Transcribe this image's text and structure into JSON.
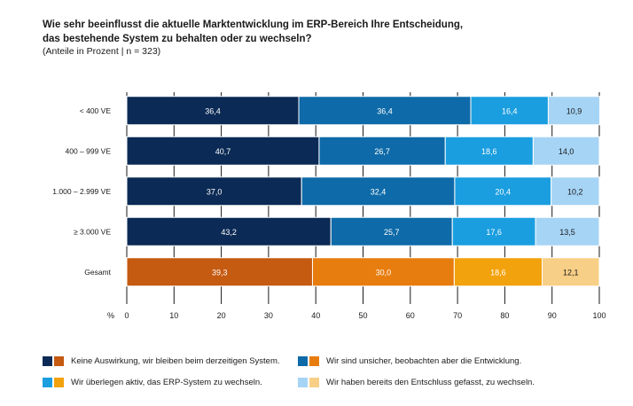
{
  "chart_data": {
    "type": "bar",
    "orientation": "horizontal",
    "stacked": true,
    "title_line1": "Wie sehr beeinflusst die aktuelle Marktentwicklung im ERP-Bereich Ihre Entscheidung,",
    "title_line2": "das bestehende System zu behalten oder zu wechseln?",
    "subtitle": "(Anteile in Prozent  | n = 323)",
    "xlabel": "%",
    "xlim": [
      0,
      100
    ],
    "xticks": [
      "0",
      "10",
      "20",
      "30",
      "40",
      "50",
      "60",
      "70",
      "80",
      "90",
      "100"
    ],
    "categories": [
      "< 400 VE",
      "400 – 999 VE",
      "1.000 – 2.999 VE",
      "≥ 3.000 VE",
      "Gesamt"
    ],
    "series": [
      {
        "name": "Keine Auswirkung, wir bleiben beim derzeitigen System.",
        "values": [
          36.4,
          40.7,
          37.0,
          43.2,
          39.3
        ],
        "labels": [
          "36,4",
          "40,7",
          "37,0",
          "43,2",
          "39,3"
        ]
      },
      {
        "name": "Wir sind unsicher, beobachten aber die Entwicklung.",
        "values": [
          36.4,
          26.7,
          32.4,
          25.7,
          30.0
        ],
        "labels": [
          "36,4",
          "26,7",
          "32,4",
          "25,7",
          "30,0"
        ]
      },
      {
        "name": "Wir überlegen aktiv, das ERP-System zu wechseln.",
        "values": [
          16.4,
          18.6,
          20.4,
          17.6,
          18.6
        ],
        "labels": [
          "16,4",
          "18,6",
          "20,4",
          "17,6",
          "18,6"
        ]
      },
      {
        "name": "Wir haben bereits den Entschluss gefasst, zu wechseln.",
        "values": [
          10.9,
          14.0,
          10.2,
          13.5,
          12.1
        ],
        "labels": [
          "10,9",
          "14,0",
          "10,2",
          "13,5",
          "12,1"
        ]
      }
    ],
    "colors": {
      "blue": [
        "#0b2a55",
        "#0e6aa8",
        "#1a9ee0",
        "#a6d4f5"
      ],
      "orange": [
        "#c55a11",
        "#e87d0f",
        "#f2a20c",
        "#f8cf86"
      ]
    },
    "label_text_colors": [
      "#ffffff",
      "#ffffff",
      "#ffffff",
      "#1a1a1a"
    ],
    "total_category": "Gesamt",
    "grid": true,
    "legend_position": "bottom"
  }
}
